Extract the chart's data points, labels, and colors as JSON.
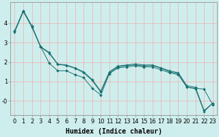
{
  "xlabel": "Humidex (Indice chaleur)",
  "ylabel": "",
  "background_color": "#ceeeed",
  "grid_color": "#f4aaaa",
  "line_color": "#1a7070",
  "x_values": [
    0,
    1,
    2,
    3,
    4,
    5,
    6,
    7,
    8,
    9,
    10,
    11,
    12,
    13,
    14,
    15,
    16,
    17,
    18,
    19,
    20,
    21,
    22,
    23
  ],
  "line1": [
    3.6,
    4.65,
    3.85,
    2.8,
    1.95,
    1.55,
    1.55,
    1.35,
    1.2,
    0.65,
    0.3,
    1.4,
    1.7,
    1.75,
    1.8,
    1.75,
    1.75,
    1.6,
    1.45,
    1.35,
    0.7,
    0.65,
    0.6,
    -0.2
  ],
  "line2": [
    3.6,
    4.65,
    3.85,
    2.8,
    2.5,
    1.9,
    1.85,
    1.7,
    1.5,
    1.1,
    0.5,
    1.5,
    1.8,
    1.85,
    1.9,
    1.85,
    1.85,
    1.7,
    1.55,
    1.45,
    0.78,
    0.7,
    -0.5,
    -0.12
  ],
  "line3": [
    3.55,
    4.6,
    3.8,
    2.78,
    2.45,
    1.88,
    1.82,
    1.68,
    1.45,
    1.05,
    0.45,
    1.45,
    1.75,
    1.82,
    1.85,
    1.8,
    1.82,
    1.68,
    1.5,
    1.4,
    0.72,
    0.62,
    -0.55,
    -0.12
  ],
  "ylim": [
    -0.75,
    5.1
  ],
  "xlim": [
    -0.5,
    23.5
  ],
  "yticks": [
    0,
    1,
    2,
    3,
    4
  ],
  "ytick_labels": [
    "-0",
    "1",
    "2",
    "3",
    "4"
  ],
  "xticks": [
    0,
    1,
    2,
    3,
    4,
    5,
    6,
    7,
    8,
    9,
    10,
    11,
    12,
    13,
    14,
    15,
    16,
    17,
    18,
    19,
    20,
    21,
    22,
    23
  ],
  "xlabel_fontsize": 7,
  "tick_fontsize": 6
}
